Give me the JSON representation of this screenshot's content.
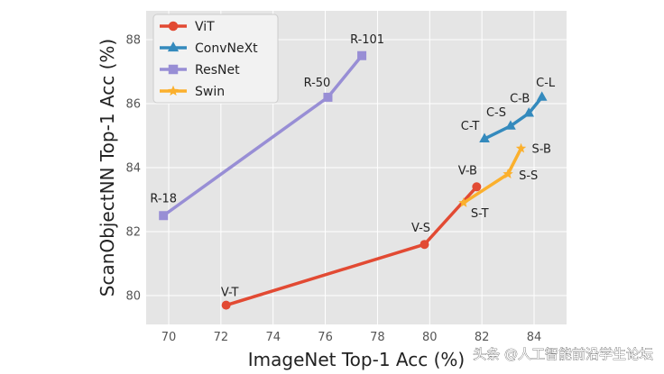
{
  "chart_data": {
    "type": "line",
    "title": "",
    "xlabel": "ImageNet Top-1 Acc (%)",
    "ylabel": "ScanObjectNN Top-1 Acc (%)",
    "xlim": [
      69.3,
      84.6
    ],
    "ylim": [
      79.2,
      89.0
    ],
    "xticks": [
      70,
      72,
      74,
      76,
      78,
      80,
      82,
      84
    ],
    "yticks": [
      80,
      82,
      84,
      86,
      88
    ],
    "grid": true,
    "legend_position": "top-left",
    "series": [
      {
        "name": "ViT",
        "color": "#e24a33",
        "marker": "circle",
        "points": [
          {
            "label": "V-T",
            "x": 72.2,
            "y": 79.7
          },
          {
            "label": "V-S",
            "x": 79.8,
            "y": 81.6
          },
          {
            "label": "V-B",
            "x": 81.8,
            "y": 83.4
          }
        ]
      },
      {
        "name": "ConvNeXt",
        "color": "#348abd",
        "marker": "triangle",
        "points": [
          {
            "label": "C-T",
            "x": 82.1,
            "y": 84.9
          },
          {
            "label": "C-S",
            "x": 83.1,
            "y": 85.3
          },
          {
            "label": "C-B",
            "x": 83.8,
            "y": 85.7
          },
          {
            "label": "C-L",
            "x": 84.3,
            "y": 86.2
          }
        ]
      },
      {
        "name": "ResNet",
        "color": "#988ed5",
        "marker": "square",
        "points": [
          {
            "label": "R-18",
            "x": 69.8,
            "y": 82.5
          },
          {
            "label": "R-50",
            "x": 76.1,
            "y": 86.2
          },
          {
            "label": "R-101",
            "x": 77.4,
            "y": 87.5
          }
        ]
      },
      {
        "name": "Swin",
        "color": "#fbb02d",
        "marker": "star",
        "points": [
          {
            "label": "S-T",
            "x": 81.3,
            "y": 82.9
          },
          {
            "label": "S-S",
            "x": 83.0,
            "y": 83.8
          },
          {
            "label": "S-B",
            "x": 83.5,
            "y": 84.6
          }
        ]
      }
    ]
  },
  "watermark": {
    "text": "头条 @人工智能前沿学生论坛"
  }
}
